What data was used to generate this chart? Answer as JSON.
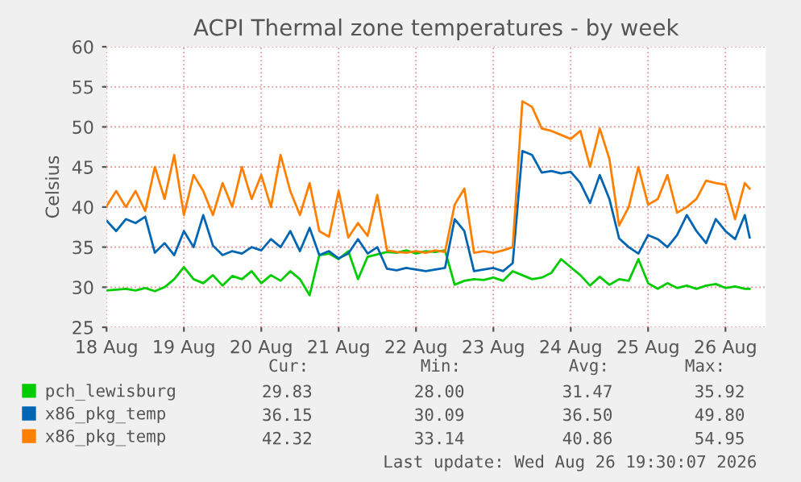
{
  "chart_data": {
    "type": "line",
    "title": "ACPI Thermal zone temperatures - by week",
    "ylabel": "Celsius",
    "x": [
      "2026-08-18T00:00",
      "2026-08-18T03:00",
      "2026-08-18T06:00",
      "2026-08-18T09:00",
      "2026-08-18T12:00",
      "2026-08-18T15:00",
      "2026-08-18T18:00",
      "2026-08-18T21:00",
      "2026-08-19T00:00",
      "2026-08-19T03:00",
      "2026-08-19T06:00",
      "2026-08-19T09:00",
      "2026-08-19T12:00",
      "2026-08-19T15:00",
      "2026-08-19T18:00",
      "2026-08-19T21:00",
      "2026-08-20T00:00",
      "2026-08-20T03:00",
      "2026-08-20T06:00",
      "2026-08-20T09:00",
      "2026-08-20T12:00",
      "2026-08-20T15:00",
      "2026-08-20T18:00",
      "2026-08-20T21:00",
      "2026-08-21T00:00",
      "2026-08-21T03:00",
      "2026-08-21T06:00",
      "2026-08-21T09:00",
      "2026-08-21T12:00",
      "2026-08-21T15:00",
      "2026-08-21T18:00",
      "2026-08-21T21:00",
      "2026-08-22T00:00",
      "2026-08-22T03:00",
      "2026-08-22T06:00",
      "2026-08-22T09:00",
      "2026-08-22T12:00",
      "2026-08-22T15:00",
      "2026-08-22T18:00",
      "2026-08-22T21:00",
      "2026-08-23T00:00",
      "2026-08-23T03:00",
      "2026-08-23T06:00",
      "2026-08-23T09:00",
      "2026-08-23T12:00",
      "2026-08-23T15:00",
      "2026-08-23T18:00",
      "2026-08-23T21:00",
      "2026-08-24T00:00",
      "2026-08-24T03:00",
      "2026-08-24T06:00",
      "2026-08-24T09:00",
      "2026-08-24T12:00",
      "2026-08-24T15:00",
      "2026-08-24T18:00",
      "2026-08-24T21:00",
      "2026-08-25T00:00",
      "2026-08-25T03:00",
      "2026-08-25T06:00",
      "2026-08-25T09:00",
      "2026-08-25T12:00",
      "2026-08-25T15:00",
      "2026-08-25T18:00",
      "2026-08-25T21:00",
      "2026-08-26T00:00",
      "2026-08-26T03:00",
      "2026-08-26T06:00",
      "2026-08-26T07:30"
    ],
    "series": [
      {
        "name": "pch_lewisburg",
        "color": "#00cc00",
        "values": [
          29.6,
          29.7,
          29.8,
          29.6,
          29.9,
          29.5,
          30,
          31,
          32.5,
          31,
          30.5,
          31.5,
          30.2,
          31.4,
          31,
          32,
          30.5,
          31.5,
          30.8,
          32,
          31,
          29,
          34,
          34.2,
          33.5,
          34.5,
          31,
          33.8,
          34.1,
          34.4,
          34.3,
          34.6,
          34.2,
          34.5,
          34.4,
          34.6,
          30.3,
          30.8,
          31,
          30.9,
          31.2,
          30.8,
          32,
          31.5,
          31,
          31.2,
          31.8,
          33.5,
          32.5,
          31.5,
          30.2,
          31.3,
          30.3,
          31,
          30.8,
          33.5,
          30.5,
          29.8,
          30.5,
          29.9,
          30.2,
          29.8,
          30.2,
          30.4,
          29.9,
          30.1,
          29.8,
          29.8
        ]
      },
      {
        "name": "x86_pkg_temp",
        "color": "#0066b3",
        "values": [
          38.3,
          37,
          38.5,
          38,
          38.8,
          34.3,
          35.5,
          34,
          37,
          35,
          39,
          35.2,
          34,
          34.5,
          34.2,
          35,
          34.6,
          36,
          35,
          37,
          34.5,
          37.4,
          34,
          34.5,
          33.6,
          34.2,
          36,
          34.2,
          35,
          32.3,
          32.1,
          32.4,
          32.2,
          32,
          32.2,
          32.4,
          38.5,
          37,
          32,
          32.2,
          32.4,
          32,
          33,
          47,
          46.5,
          44.3,
          44.5,
          44.2,
          44.4,
          43,
          40.5,
          44,
          41,
          36.1,
          35,
          34.2,
          36.5,
          36,
          35,
          36.5,
          39,
          37,
          35.5,
          38.5,
          37,
          36,
          39,
          36.2
        ]
      },
      {
        "name": "x86_pkg_temp",
        "color": "#ff8000",
        "values": [
          40.1,
          42,
          40,
          42,
          39.5,
          45,
          41,
          46.5,
          39,
          44,
          42,
          39,
          43,
          40,
          45,
          41,
          44,
          40,
          46.5,
          42,
          39,
          43,
          37,
          36.3,
          42,
          36.2,
          38,
          36.4,
          41.5,
          34.6,
          34.4,
          34.3,
          34.5,
          34.3,
          34.6,
          34.4,
          40.3,
          42.3,
          34.3,
          34.5,
          34.3,
          34.6,
          35,
          53.2,
          52.5,
          49.8,
          49.5,
          49,
          48.5,
          49.5,
          45,
          49.8,
          46,
          37.7,
          40,
          45,
          40.3,
          41,
          44,
          39.3,
          40,
          41,
          43.3,
          43,
          42.8,
          38.5,
          43,
          42.3
        ]
      }
    ],
    "xlim": [
      "2026-08-18T00:00",
      "2026-08-26T12:30"
    ],
    "xticks": [
      {
        "value": "2026-08-18T00:00",
        "label": "18 Aug"
      },
      {
        "value": "2026-08-19T00:00",
        "label": "19 Aug"
      },
      {
        "value": "2026-08-20T00:00",
        "label": "20 Aug"
      },
      {
        "value": "2026-08-21T00:00",
        "label": "21 Aug"
      },
      {
        "value": "2026-08-22T00:00",
        "label": "22 Aug"
      },
      {
        "value": "2026-08-23T00:00",
        "label": "23 Aug"
      },
      {
        "value": "2026-08-24T00:00",
        "label": "24 Aug"
      },
      {
        "value": "2026-08-25T00:00",
        "label": "25 Aug"
      },
      {
        "value": "2026-08-26T00:00",
        "label": "26 Aug"
      }
    ],
    "ylim": [
      25,
      60
    ],
    "yticks": [
      25,
      30,
      35,
      40,
      45,
      50,
      55,
      60
    ],
    "grid": true,
    "legend": "bottom",
    "line_style": "solid",
    "marker": "none",
    "annotations": [
      "Cur:",
      "Min:",
      "Avg:",
      "Max:",
      "29.83",
      "28.00",
      "31.47",
      "35.92",
      "36.15",
      "30.09",
      "36.50",
      "49.80",
      "42.32",
      "33.14",
      "40.86",
      "54.95",
      "Last update: Wed Aug 26 19:30:07 2026"
    ]
  }
}
